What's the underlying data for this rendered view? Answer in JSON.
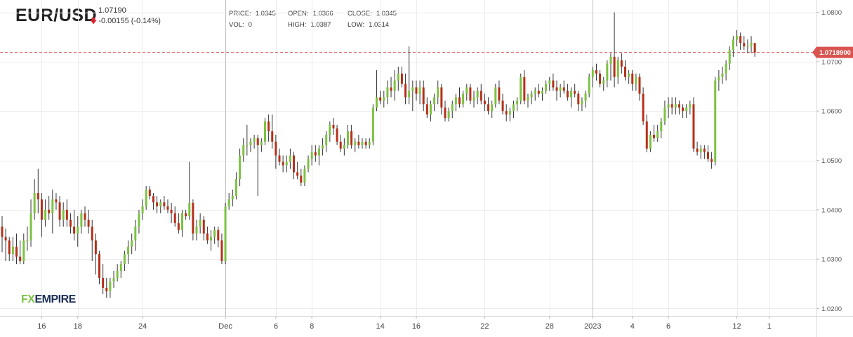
{
  "header": {
    "symbol": "EUR/USD",
    "last_price": "1.07190",
    "change": "-0.00155 (-0.14%)",
    "change_direction": "down",
    "change_icon": "down-arrow-icon"
  },
  "ohlc": {
    "price_label": "PRICE:",
    "price_value": "1.0345",
    "vol_label": "VOL:",
    "vol_value": "0",
    "open_label": "OPEN:",
    "open_value": "1.0366",
    "high_label": "HIGH:",
    "high_value": "1.0387",
    "close_label": "CLOSE:",
    "close_value": "1.0345",
    "low_label": "LOW:",
    "low_value": "1.0314"
  },
  "logo": {
    "fx": "FX",
    "empire": "EMPIRE"
  },
  "colors": {
    "up": "#7cc242",
    "down": "#b5301b",
    "price_line": "#d9534f",
    "grid": "#ececec"
  },
  "chart_data": {
    "type": "candlestick",
    "current_price_label": "1.0718900",
    "current_price": 1.07189,
    "ylim": [
      1.0185,
      1.0825
    ],
    "yticks": [
      "1.0800",
      "1.0700",
      "1.0600",
      "1.0500",
      "1.0400",
      "1.0300",
      "1.0200"
    ],
    "ytick_values": [
      1.08,
      1.07,
      1.06,
      1.05,
      1.04,
      1.03,
      1.02
    ],
    "xticks": [
      "16",
      "18",
      "24",
      "Dec",
      "6",
      "8",
      "14",
      "16",
      "22",
      "28",
      "2023",
      "4",
      "6",
      "12",
      "1"
    ],
    "xtick_bar_index": [
      11,
      21,
      39,
      62,
      76,
      86,
      105,
      115,
      134,
      152,
      164,
      175,
      185,
      204,
      213
    ],
    "highlighted_xticks": [
      "Dec",
      "2023"
    ],
    "candles": [
      [
        1.0366,
        1.0387,
        1.0314,
        1.0345
      ],
      [
        1.0345,
        1.0362,
        1.0296,
        1.0338
      ],
      [
        1.0338,
        1.0345,
        1.0296,
        1.031
      ],
      [
        1.031,
        1.0345,
        1.0296,
        1.0325
      ],
      [
        1.0325,
        1.0352,
        1.029,
        1.0305
      ],
      [
        1.0305,
        1.0338,
        1.029,
        1.0296
      ],
      [
        1.0296,
        1.0352,
        1.029,
        1.0338
      ],
      [
        1.0338,
        1.0366,
        1.0317,
        1.0338
      ],
      [
        1.0338,
        1.0421,
        1.0325,
        1.0393
      ],
      [
        1.0393,
        1.0462,
        1.038,
        1.0434
      ],
      [
        1.0434,
        1.0483,
        1.0393,
        1.0421
      ],
      [
        1.0421,
        1.0434,
        1.0345,
        1.038
      ],
      [
        1.038,
        1.0421,
        1.0366,
        1.04
      ],
      [
        1.04,
        1.0428,
        1.038,
        1.0393
      ],
      [
        1.0393,
        1.0441,
        1.0352,
        1.0421
      ],
      [
        1.0421,
        1.0434,
        1.04,
        1.0415
      ],
      [
        1.0415,
        1.0428,
        1.0366,
        1.038
      ],
      [
        1.038,
        1.0415,
        1.0366,
        1.04
      ],
      [
        1.04,
        1.0421,
        1.0366,
        1.038
      ],
      [
        1.038,
        1.0393,
        1.0352,
        1.0366
      ],
      [
        1.0366,
        1.04,
        1.0338,
        1.0352
      ],
      [
        1.0352,
        1.0387,
        1.0325,
        1.0366
      ],
      [
        1.0366,
        1.04,
        1.0352,
        1.0393
      ],
      [
        1.0393,
        1.0407,
        1.0366,
        1.038
      ],
      [
        1.038,
        1.04,
        1.0352,
        1.0366
      ],
      [
        1.0366,
        1.038,
        1.0296,
        1.0338
      ],
      [
        1.0338,
        1.0352,
        1.0269,
        1.031
      ],
      [
        1.031,
        1.0317,
        1.0249,
        1.0262
      ],
      [
        1.0262,
        1.029,
        1.0229,
        1.0242
      ],
      [
        1.0242,
        1.0262,
        1.0222,
        1.0235
      ],
      [
        1.0235,
        1.0262,
        1.0222,
        1.0255
      ],
      [
        1.0255,
        1.0276,
        1.0242,
        1.0262
      ],
      [
        1.0262,
        1.029,
        1.0255,
        1.0276
      ],
      [
        1.0276,
        1.0296,
        1.0262,
        1.029
      ],
      [
        1.029,
        1.0317,
        1.0276,
        1.031
      ],
      [
        1.031,
        1.0338,
        1.029,
        1.0325
      ],
      [
        1.0325,
        1.0352,
        1.031,
        1.0338
      ],
      [
        1.0338,
        1.038,
        1.0317,
        1.0366
      ],
      [
        1.0366,
        1.04,
        1.0352,
        1.0393
      ],
      [
        1.0393,
        1.0421,
        1.038,
        1.0407
      ],
      [
        1.0407,
        1.0448,
        1.04,
        1.0441
      ],
      [
        1.0441,
        1.0448,
        1.0421,
        1.0428
      ],
      [
        1.0428,
        1.0434,
        1.04,
        1.0415
      ],
      [
        1.0415,
        1.0428,
        1.0393,
        1.0407
      ],
      [
        1.0407,
        1.0421,
        1.0393,
        1.0415
      ],
      [
        1.0415,
        1.0428,
        1.04,
        1.0407
      ],
      [
        1.0407,
        1.0421,
        1.0393,
        1.04
      ],
      [
        1.04,
        1.0414,
        1.0373,
        1.0393
      ],
      [
        1.0393,
        1.0407,
        1.0366,
        1.0373
      ],
      [
        1.0373,
        1.0393,
        1.0352,
        1.0359
      ],
      [
        1.0359,
        1.04,
        1.0345,
        1.0393
      ],
      [
        1.0393,
        1.04,
        1.038,
        1.0387
      ],
      [
        1.0387,
        1.0497,
        1.038,
        1.0414
      ],
      [
        1.0414,
        1.0421,
        1.0338,
        1.0352
      ],
      [
        1.0352,
        1.038,
        1.0338,
        1.0366
      ],
      [
        1.0366,
        1.0393,
        1.0352,
        1.038
      ],
      [
        1.038,
        1.0387,
        1.0338,
        1.0352
      ],
      [
        1.0352,
        1.0366,
        1.0331,
        1.0338
      ],
      [
        1.0338,
        1.0359,
        1.0317,
        1.0345
      ],
      [
        1.0345,
        1.0366,
        1.0331,
        1.0359
      ],
      [
        1.0359,
        1.0366,
        1.0324,
        1.0338
      ],
      [
        1.0338,
        1.0352,
        1.029,
        1.0296
      ],
      [
        1.0296,
        1.0414,
        1.029,
        1.0407
      ],
      [
        1.0407,
        1.0434,
        1.04,
        1.0421
      ],
      [
        1.0421,
        1.0441,
        1.0407,
        1.0428
      ],
      [
        1.0428,
        1.0476,
        1.0421,
        1.0462
      ],
      [
        1.0462,
        1.0524,
        1.0448,
        1.051
      ],
      [
        1.051,
        1.0545,
        1.0497,
        1.0531
      ],
      [
        1.0531,
        1.0572,
        1.051,
        1.0531
      ],
      [
        1.0531,
        1.0545,
        1.0517,
        1.0538
      ],
      [
        1.0538,
        1.0552,
        1.0524,
        1.0545
      ],
      [
        1.0545,
        1.0552,
        1.0428,
        1.0531
      ],
      [
        1.0531,
        1.0545,
        1.0517,
        1.0538
      ],
      [
        1.0538,
        1.0586,
        1.0531,
        1.0579
      ],
      [
        1.0579,
        1.0593,
        1.0538,
        1.0559
      ],
      [
        1.0559,
        1.0593,
        1.0524,
        1.0538
      ],
      [
        1.0538,
        1.0552,
        1.0483,
        1.051
      ],
      [
        1.051,
        1.0524,
        1.049,
        1.0497
      ],
      [
        1.0497,
        1.051,
        1.0476,
        1.049
      ],
      [
        1.049,
        1.051,
        1.0476,
        1.0497
      ],
      [
        1.0497,
        1.0524,
        1.0483,
        1.051
      ],
      [
        1.051,
        1.0517,
        1.0462,
        1.0476
      ],
      [
        1.0476,
        1.0497,
        1.0462,
        1.0469
      ],
      [
        1.0469,
        1.0483,
        1.0448,
        1.0455
      ],
      [
        1.0455,
        1.049,
        1.0448,
        1.0483
      ],
      [
        1.0483,
        1.051,
        1.0476,
        1.0503
      ],
      [
        1.0503,
        1.0531,
        1.049,
        1.0517
      ],
      [
        1.0517,
        1.0531,
        1.0497,
        1.051
      ],
      [
        1.051,
        1.0531,
        1.049,
        1.0524
      ],
      [
        1.0524,
        1.0545,
        1.051,
        1.0531
      ],
      [
        1.0531,
        1.0559,
        1.0517,
        1.0552
      ],
      [
        1.0552,
        1.0579,
        1.0538,
        1.0572
      ],
      [
        1.0572,
        1.0586,
        1.0552,
        1.0565
      ],
      [
        1.0565,
        1.0572,
        1.0531,
        1.0538
      ],
      [
        1.0538,
        1.0552,
        1.0517,
        1.0524
      ],
      [
        1.0524,
        1.0545,
        1.051,
        1.0531
      ],
      [
        1.0531,
        1.0572,
        1.0524,
        1.0559
      ],
      [
        1.0559,
        1.0572,
        1.0524,
        1.0531
      ],
      [
        1.0531,
        1.0545,
        1.0517,
        1.0538
      ],
      [
        1.0538,
        1.0552,
        1.0524,
        1.0531
      ],
      [
        1.0531,
        1.0545,
        1.0524,
        1.0538
      ],
      [
        1.0538,
        1.0545,
        1.0524,
        1.0531
      ],
      [
        1.0531,
        1.0545,
        1.0524,
        1.0538
      ],
      [
        1.0538,
        1.0614,
        1.0531,
        1.0607
      ],
      [
        1.0607,
        1.0683,
        1.06,
        1.0628
      ],
      [
        1.0628,
        1.0641,
        1.0614,
        1.0621
      ],
      [
        1.0621,
        1.0641,
        1.0607,
        1.0628
      ],
      [
        1.0628,
        1.0662,
        1.0614,
        1.0648
      ],
      [
        1.0648,
        1.0669,
        1.0628,
        1.0641
      ],
      [
        1.0641,
        1.0683,
        1.0621,
        1.0662
      ],
      [
        1.0662,
        1.069,
        1.0641,
        1.0676
      ],
      [
        1.0676,
        1.069,
        1.0648,
        1.0655
      ],
      [
        1.0655,
        1.0676,
        1.0614,
        1.0628
      ],
      [
        1.0628,
        1.0731,
        1.0614,
        1.0641
      ],
      [
        1.0641,
        1.0662,
        1.06,
        1.0648
      ],
      [
        1.0648,
        1.0662,
        1.0621,
        1.0635
      ],
      [
        1.0635,
        1.0662,
        1.0614,
        1.0648
      ],
      [
        1.0648,
        1.0662,
        1.06,
        1.0614
      ],
      [
        1.0614,
        1.0628,
        1.0586,
        1.0593
      ],
      [
        1.0593,
        1.0621,
        1.0579,
        1.0614
      ],
      [
        1.0614,
        1.0635,
        1.06,
        1.0628
      ],
      [
        1.0628,
        1.0662,
        1.0614,
        1.0648
      ],
      [
        1.0648,
        1.0655,
        1.0593,
        1.0607
      ],
      [
        1.0607,
        1.0621,
        1.0579,
        1.0586
      ],
      [
        1.0586,
        1.0607,
        1.0579,
        1.06
      ],
      [
        1.06,
        1.0621,
        1.0586,
        1.0614
      ],
      [
        1.0614,
        1.0635,
        1.06,
        1.0628
      ],
      [
        1.0628,
        1.0648,
        1.0607,
        1.0614
      ],
      [
        1.0614,
        1.0641,
        1.0607,
        1.0635
      ],
      [
        1.0635,
        1.0655,
        1.0621,
        1.0648
      ],
      [
        1.0648,
        1.0655,
        1.0614,
        1.0621
      ],
      [
        1.0621,
        1.0641,
        1.0607,
        1.0628
      ],
      [
        1.0628,
        1.0648,
        1.0614,
        1.0641
      ],
      [
        1.0641,
        1.0655,
        1.0614,
        1.0621
      ],
      [
        1.0621,
        1.0635,
        1.06,
        1.0614
      ],
      [
        1.0614,
        1.0628,
        1.0593,
        1.06
      ],
      [
        1.06,
        1.0621,
        1.0586,
        1.0614
      ],
      [
        1.0614,
        1.0655,
        1.0607,
        1.0648
      ],
      [
        1.0648,
        1.0662,
        1.0614,
        1.0621
      ],
      [
        1.0621,
        1.0635,
        1.0593,
        1.06
      ],
      [
        1.06,
        1.0614,
        1.0579,
        1.0593
      ],
      [
        1.0593,
        1.0607,
        1.0579,
        1.06
      ],
      [
        1.06,
        1.0621,
        1.0586,
        1.0614
      ],
      [
        1.0614,
        1.0628,
        1.06,
        1.0621
      ],
      [
        1.0621,
        1.0676,
        1.0614,
        1.0669
      ],
      [
        1.0669,
        1.0683,
        1.0614,
        1.0621
      ],
      [
        1.0621,
        1.0635,
        1.0607,
        1.0628
      ],
      [
        1.0628,
        1.0641,
        1.0614,
        1.0635
      ],
      [
        1.0635,
        1.0648,
        1.0621,
        1.0641
      ],
      [
        1.0641,
        1.0655,
        1.0628,
        1.0635
      ],
      [
        1.0635,
        1.0648,
        1.0621,
        1.0641
      ],
      [
        1.0641,
        1.0662,
        1.0635,
        1.0655
      ],
      [
        1.0655,
        1.0669,
        1.0641,
        1.0662
      ],
      [
        1.0662,
        1.0676,
        1.0641,
        1.0648
      ],
      [
        1.0648,
        1.0662,
        1.0621,
        1.0641
      ],
      [
        1.0641,
        1.0655,
        1.0628,
        1.0648
      ],
      [
        1.0648,
        1.0662,
        1.0635,
        1.0641
      ],
      [
        1.0641,
        1.0655,
        1.0621,
        1.0628
      ],
      [
        1.0628,
        1.0648,
        1.0607,
        1.0641
      ],
      [
        1.0641,
        1.0655,
        1.0628,
        1.0635
      ],
      [
        1.0635,
        1.0641,
        1.06,
        1.0614
      ],
      [
        1.0614,
        1.0628,
        1.06,
        1.0621
      ],
      [
        1.0621,
        1.0641,
        1.0607,
        1.0635
      ],
      [
        1.0635,
        1.0676,
        1.0628,
        1.0669
      ],
      [
        1.0669,
        1.069,
        1.0648,
        1.0683
      ],
      [
        1.0683,
        1.0696,
        1.0662,
        1.0676
      ],
      [
        1.0676,
        1.0683,
        1.0648,
        1.0655
      ],
      [
        1.0655,
        1.0669,
        1.0641,
        1.0662
      ],
      [
        1.0662,
        1.0703,
        1.0648,
        1.0696
      ],
      [
        1.0696,
        1.0717,
        1.0662,
        1.071
      ],
      [
        1.071,
        1.08,
        1.0648,
        1.0669
      ],
      [
        1.0669,
        1.071,
        1.0655,
        1.0703
      ],
      [
        1.0703,
        1.0717,
        1.0676,
        1.069
      ],
      [
        1.069,
        1.0703,
        1.0662,
        1.0669
      ],
      [
        1.0669,
        1.0683,
        1.0655,
        1.0676
      ],
      [
        1.0676,
        1.0683,
        1.0641,
        1.0655
      ],
      [
        1.0655,
        1.0676,
        1.0641,
        1.0669
      ],
      [
        1.0669,
        1.0676,
        1.0621,
        1.0635
      ],
      [
        1.0635,
        1.0648,
        1.0572,
        1.0579
      ],
      [
        1.0579,
        1.0593,
        1.0517,
        1.0524
      ],
      [
        1.0524,
        1.0559,
        1.0517,
        1.0552
      ],
      [
        1.0552,
        1.0572,
        1.0538,
        1.0545
      ],
      [
        1.0545,
        1.0572,
        1.0538,
        1.0559
      ],
      [
        1.0559,
        1.0586,
        1.0545,
        1.0579
      ],
      [
        1.0579,
        1.0621,
        1.0572,
        1.0607
      ],
      [
        1.0607,
        1.0628,
        1.0586,
        1.0614
      ],
      [
        1.0614,
        1.0628,
        1.0593,
        1.0607
      ],
      [
        1.0607,
        1.0628,
        1.0593,
        1.0614
      ],
      [
        1.0614,
        1.0621,
        1.0593,
        1.0607
      ],
      [
        1.0607,
        1.0614,
        1.0586,
        1.06
      ],
      [
        1.06,
        1.0614,
        1.0586,
        1.0607
      ],
      [
        1.0607,
        1.0621,
        1.0593,
        1.0614
      ],
      [
        1.0614,
        1.0628,
        1.0517,
        1.0524
      ],
      [
        1.0524,
        1.0538,
        1.051,
        1.0517
      ],
      [
        1.0517,
        1.0531,
        1.0503,
        1.0524
      ],
      [
        1.0524,
        1.0531,
        1.0503,
        1.0517
      ],
      [
        1.0517,
        1.0531,
        1.0497,
        1.0503
      ],
      [
        1.0503,
        1.0517,
        1.0483,
        1.0497
      ],
      [
        1.0497,
        1.0669,
        1.049,
        1.0662
      ],
      [
        1.0662,
        1.0683,
        1.0641,
        1.0669
      ],
      [
        1.0669,
        1.069,
        1.0655,
        1.0676
      ],
      [
        1.0676,
        1.0703,
        1.0662,
        1.0696
      ],
      [
        1.0696,
        1.0731,
        1.0683,
        1.0724
      ],
      [
        1.0724,
        1.0752,
        1.071,
        1.0745
      ],
      [
        1.0745,
        1.0764,
        1.0731,
        1.0752
      ],
      [
        1.0752,
        1.0759,
        1.0724,
        1.0738
      ],
      [
        1.0738,
        1.0752,
        1.0724,
        1.0731
      ],
      [
        1.0731,
        1.0745,
        1.0717,
        1.0731
      ],
      [
        1.0731,
        1.0752,
        1.0717,
        1.0738
      ],
      [
        1.0738,
        1.0738,
        1.071,
        1.0719
      ]
    ]
  }
}
